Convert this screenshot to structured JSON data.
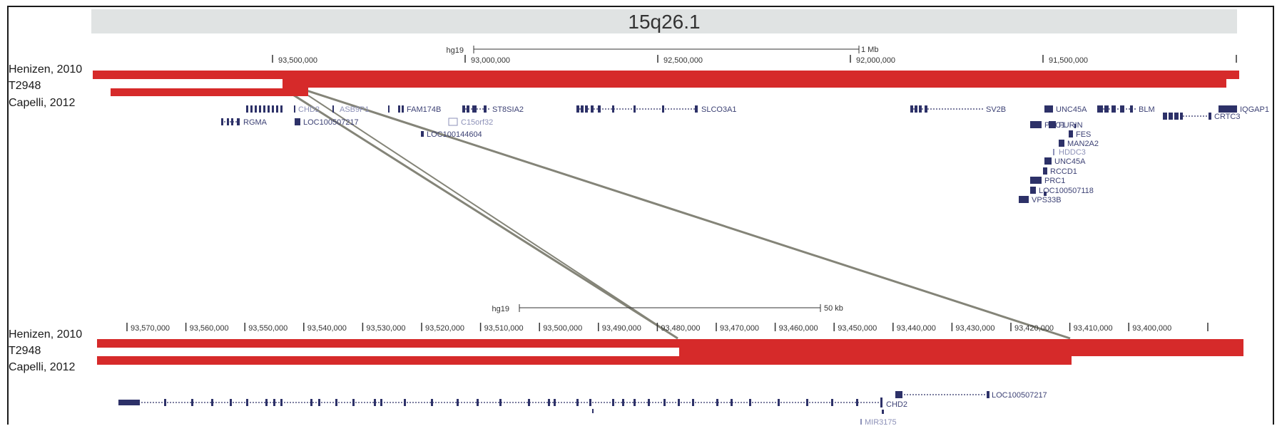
{
  "band": {
    "label": "15q26.1"
  },
  "colors": {
    "cnv": "#d62a2a",
    "gene": "#2d3168",
    "gene_light": "#8d91b8",
    "zoom_line": "#848478",
    "band": "#e0e3e3"
  },
  "top_panel": {
    "track_labels": [
      "Henizen, 2010",
      "T2948",
      "Capelli, 2012"
    ],
    "scale": {
      "assembly": "hg19",
      "length_label": "1 Mb"
    },
    "ticks": [
      "93,500,000",
      "93,000,000",
      "92,500,000",
      "92,000,000",
      "91,500,000"
    ],
    "genes": [
      {
        "name": "CHD2",
        "style": "light"
      },
      {
        "name": "ASB9P1",
        "style": "light"
      },
      {
        "name": "FAM174B",
        "style": "dark"
      },
      {
        "name": "ST8SIA2",
        "style": "dark"
      },
      {
        "name": "SLCO3A1",
        "style": "dark"
      },
      {
        "name": "SV2B",
        "style": "dark"
      },
      {
        "name": "UNC45A",
        "style": "dark"
      },
      {
        "name": "BLM",
        "style": "dark"
      },
      {
        "name": "IQGAP1",
        "style": "dark"
      },
      {
        "name": "RGMA",
        "style": "dark"
      },
      {
        "name": "LOC100507217",
        "style": "dark"
      },
      {
        "name": "C15orf32",
        "style": "light"
      },
      {
        "name": "CRTC3",
        "style": "dark"
      },
      {
        "name": "LOC100144604",
        "style": "dark"
      },
      {
        "name": "PRC1",
        "style": "dark"
      },
      {
        "name": "FURIN",
        "style": "dark"
      },
      {
        "name": "FES",
        "style": "dark"
      },
      {
        "name": "MAN2A2",
        "style": "dark"
      },
      {
        "name": "HDDC3",
        "style": "light"
      },
      {
        "name": "UNC45A",
        "style": "dark"
      },
      {
        "name": "RCCD1",
        "style": "dark"
      },
      {
        "name": "PRC1",
        "style": "dark"
      },
      {
        "name": "LOC100507118",
        "style": "dark"
      },
      {
        "name": "VPS33B",
        "style": "dark"
      }
    ]
  },
  "bottom_panel": {
    "track_labels": [
      "Henizen, 2010",
      "T2948",
      "Capelli, 2012"
    ],
    "scale": {
      "assembly": "hg19",
      "length_label": "50 kb"
    },
    "ticks": [
      "93,570,000",
      "93,560,000",
      "93,550,000",
      "93,540,000",
      "93,530,000",
      "93,520,000",
      "93,510,000",
      "93,500,000",
      "93,490,000",
      "93,480,000",
      "93,470,000",
      "93,460,000",
      "93,450,000",
      "93,440,000",
      "93,430,000",
      "93,420,000",
      "93,410,000",
      "93,400,000"
    ],
    "genes": [
      {
        "name": "LOC100507217",
        "style": "dark"
      },
      {
        "name": "CHD2",
        "style": "dark"
      },
      {
        "name": "MIR3175",
        "style": "light"
      }
    ]
  }
}
